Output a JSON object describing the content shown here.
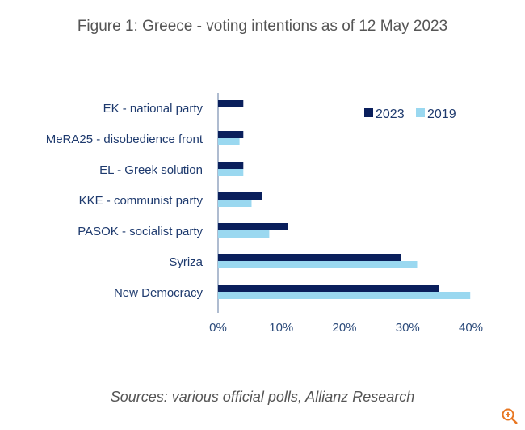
{
  "chart_data": {
    "type": "bar",
    "orientation": "horizontal",
    "title": "Figure 1: Greece - voting intentions as of 12 May 2023",
    "categories": [
      "EK - national party",
      "MeRA25 - disobedience front",
      "EL - Greek solution",
      "KKE - communist party",
      "PASOK - socialist party",
      "Syriza",
      "New Democracy"
    ],
    "series": [
      {
        "name": "2023",
        "color": "#0a1f5c",
        "values": [
          4,
          4,
          4,
          7,
          11,
          29,
          35
        ]
      },
      {
        "name": "2019",
        "color": "#9ad8f0",
        "values": [
          null,
          3.4,
          4,
          5.3,
          8.1,
          31.5,
          39.9
        ]
      }
    ],
    "xlim": [
      0,
      40
    ],
    "xticks": [
      0,
      10,
      20,
      30,
      40
    ],
    "xtick_labels": [
      "0%",
      "10%",
      "20%",
      "30%",
      "40%"
    ],
    "grid": false,
    "legend_placement": "top-right",
    "source": "Sources: various official polls, Allianz Research"
  },
  "ui": {
    "zoom_icon": "zoom-in-icon",
    "zoom_color": "#e87722"
  }
}
